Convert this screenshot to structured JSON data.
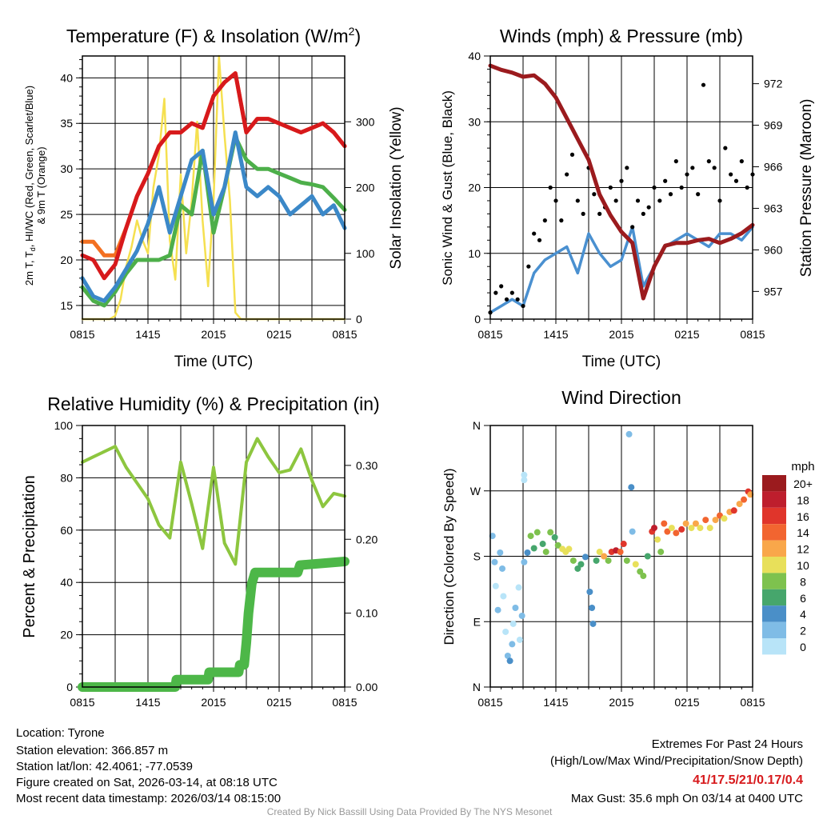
{
  "chart_data": [
    {
      "type": "line",
      "title_main": "Temperature (F) & Insolation (W/m",
      "title_sup": "2",
      "title_end": ")",
      "xlabel": "Time (UTC)",
      "ylabel_line1_a": "2m T, T",
      "ylabel_line1_sub": "d",
      "ylabel_line1_b": ", HI/WC (Red, Green, Scarlet/Blue)",
      "ylabel_line2": "& 9m T (Orange)",
      "ylabel_right": "Solar Insolation (Yellow)",
      "x_tick_labels": [
        "0815",
        "1415",
        "2015",
        "0215",
        "0815"
      ],
      "y_ticks": [
        15,
        20,
        25,
        30,
        35,
        40
      ],
      "ylim": [
        13.5,
        42.4
      ],
      "y_right_ticks": [
        0,
        100,
        200,
        300
      ],
      "y_right_lim": [
        0,
        400
      ],
      "x_hours": [
        0,
        1,
        2,
        3,
        4,
        5,
        6,
        7,
        8,
        9,
        10,
        11,
        12,
        13,
        14,
        15,
        16,
        17,
        18,
        19,
        20,
        21,
        22,
        23,
        24
      ],
      "series": [
        {
          "name": "9m T",
          "color": "#F37021",
          "values": [
            22,
            22,
            20.5,
            20.5,
            23.5,
            27,
            29.5,
            32.5,
            34,
            34,
            35,
            34.5,
            38,
            39.5,
            40.5,
            34,
            35.5,
            35.5,
            35,
            34.5,
            34,
            34.5,
            35,
            34,
            32.5
          ]
        },
        {
          "name": "2m T",
          "color": "#D7191C",
          "values": [
            20.5,
            20,
            18,
            19.5,
            23.5,
            27,
            29.5,
            32.5,
            34,
            34,
            35,
            34.5,
            38,
            39.5,
            40.5,
            34,
            35.5,
            35.5,
            35,
            34.5,
            34,
            34.5,
            35,
            34,
            32.5
          ]
        },
        {
          "name": "Td",
          "color": "#4DAF4A",
          "values": [
            17,
            15.5,
            15,
            16.5,
            18.5,
            20,
            20,
            20,
            20.5,
            26,
            25,
            32,
            23,
            28,
            33.5,
            31,
            30,
            30,
            29.5,
            29,
            28.5,
            28.3,
            28,
            26.8,
            25.5
          ]
        },
        {
          "name": "HI/WC",
          "color": "#3B88C8",
          "values": [
            18,
            16,
            15.5,
            17,
            19,
            21,
            24,
            28,
            23,
            27,
            31,
            32,
            25,
            28,
            34,
            28,
            27,
            28,
            27,
            25,
            26,
            27,
            25,
            26,
            23.5
          ]
        }
      ],
      "solar": {
        "name": "Solar Insolation",
        "color": "#F5E050",
        "step_hours": 0.5,
        "values": [
          0,
          0,
          0,
          0,
          0,
          0,
          5,
          30,
          80,
          110,
          150,
          120,
          100,
          200,
          250,
          335,
          120,
          60,
          220,
          100,
          180,
          300,
          150,
          50,
          180,
          400,
          280,
          180,
          10,
          0,
          0,
          0,
          0,
          0,
          0,
          0,
          0,
          0,
          0,
          0,
          0,
          0,
          0,
          0,
          0,
          0,
          0,
          0,
          0
        ]
      }
    },
    {
      "type": "line",
      "title": "Winds (mph) & Pressure (mb)",
      "xlabel": "Time (UTC)",
      "ylabel": "Sonic Wind & Gust (Blue, Black)",
      "ylabel_right": "Station Pressure (Maroon)",
      "x_tick_labels": [
        "0815",
        "1415",
        "2015",
        "0215",
        "0815"
      ],
      "y_ticks": [
        0,
        10,
        20,
        30,
        40
      ],
      "ylim": [
        0,
        40
      ],
      "y_right_ticks": [
        957,
        960,
        963,
        966,
        969,
        972
      ],
      "y_right_lim": [
        955,
        974
      ],
      "x_hours": [
        0,
        1,
        2,
        3,
        4,
        5,
        6,
        7,
        8,
        9,
        10,
        11,
        12,
        13,
        14,
        15,
        16,
        17,
        18,
        19,
        20,
        21,
        22,
        23,
        24
      ],
      "wind": {
        "name": "Sonic Wind",
        "color": "#4A90D0",
        "values": [
          1,
          2,
          3,
          2,
          7,
          9,
          10,
          11,
          7,
          13,
          10,
          8,
          9,
          14,
          5,
          8,
          11,
          12,
          13,
          12,
          11,
          13,
          13,
          12,
          14
        ]
      },
      "pressure": {
        "name": "Station Pressure",
        "color": "#9B1B1E",
        "values": [
          973.3,
          973,
          972.8,
          972.5,
          972.6,
          972,
          971,
          969.5,
          968,
          966.5,
          964,
          962.5,
          961.3,
          960.5,
          956.5,
          958.8,
          960.3,
          960.5,
          960.5,
          960.7,
          960.8,
          960.5,
          960.8,
          961.2,
          961.8
        ]
      },
      "gust": {
        "name": "Gust",
        "color": "#000000",
        "step_hours": 0.5,
        "values": [
          1,
          4,
          5,
          3,
          4,
          3,
          2,
          8,
          13,
          12,
          15,
          20,
          18,
          15,
          22,
          25,
          18,
          16,
          23,
          19,
          16,
          17,
          20,
          18,
          21,
          23,
          14,
          18,
          16,
          17,
          20,
          18,
          21,
          19,
          24,
          20,
          22,
          23,
          19,
          35.6,
          24,
          23,
          18,
          26,
          22,
          21,
          24,
          20,
          22
        ]
      }
    },
    {
      "type": "line",
      "title": "Relative Humidity (%) & Precipitation (in)",
      "ylabel": "Percent & Precipitation",
      "x_tick_labels": [
        "0815",
        "1415",
        "2015",
        "0215",
        "0815"
      ],
      "y_ticks": [
        0,
        20,
        40,
        60,
        80,
        100
      ],
      "ylim": [
        0,
        100
      ],
      "y_right_ticks": [
        "0.00",
        "0.10",
        "0.20",
        "0.30"
      ],
      "y_right_lim": [
        0,
        0.354
      ],
      "x_hours": [
        0,
        1,
        2,
        3,
        4,
        5,
        6,
        7,
        8,
        9,
        10,
        11,
        12,
        13,
        14,
        15,
        16,
        17,
        18,
        19,
        20,
        21,
        22,
        23,
        24
      ],
      "humidity": {
        "name": "Relative Humidity",
        "color": "#8DC63F",
        "values": [
          86,
          88,
          90,
          92,
          84,
          78,
          72,
          62,
          57,
          86,
          70,
          53,
          84,
          55,
          47,
          86,
          95,
          88,
          82,
          83,
          91,
          79,
          69,
          74,
          73
        ]
      },
      "precip": {
        "name": "Precipitation",
        "color": "#4DB748",
        "points": [
          [
            0,
            0
          ],
          [
            8.5,
            0
          ],
          [
            8.6,
            0.01
          ],
          [
            11.5,
            0.01
          ],
          [
            11.6,
            0.02
          ],
          [
            14.3,
            0.02
          ],
          [
            14.4,
            0.03
          ],
          [
            14.8,
            0.03
          ],
          [
            15,
            0.06
          ],
          [
            15.2,
            0.1
          ],
          [
            15.5,
            0.14
          ],
          [
            15.8,
            0.155
          ],
          [
            19.7,
            0.155
          ],
          [
            19.9,
            0.165
          ],
          [
            24,
            0.17
          ]
        ]
      }
    },
    {
      "type": "scatter",
      "title": "Wind Direction",
      "ylabel": "Direction (Colored By Speed)",
      "x_tick_labels": [
        "0815",
        "1415",
        "2015",
        "0215",
        "0815"
      ],
      "y_tick_labels": [
        "N",
        "E",
        "S",
        "W",
        "N"
      ],
      "ylim": [
        0,
        360
      ],
      "colorbar_title": "mph",
      "colorbar_labels": [
        "20+",
        "18",
        "16",
        "14",
        "12",
        "10",
        "8",
        "6",
        "4",
        "2",
        "0"
      ],
      "colorbar_colors": [
        "#9B1B1E",
        "#BE1E2D",
        "#E0352B",
        "#F26530",
        "#F9A74A",
        "#E8E05A",
        "#7EC24E",
        "#46A66C",
        "#4A8FC8",
        "#7FBCE6",
        "#B8E4F8"
      ],
      "points_hour_dir_speed": [
        [
          0.2,
          208,
          2
        ],
        [
          0.4,
          172,
          2
        ],
        [
          0.5,
          139,
          1
        ],
        [
          0.7,
          106,
          2
        ],
        [
          0.9,
          185,
          3
        ],
        [
          1.1,
          163,
          2
        ],
        [
          1.2,
          125,
          1
        ],
        [
          1.4,
          76,
          1
        ],
        [
          1.6,
          43,
          3
        ],
        [
          1.8,
          36,
          4
        ],
        [
          2.0,
          59,
          2
        ],
        [
          2.1,
          87,
          1
        ],
        [
          2.3,
          109,
          2
        ],
        [
          2.6,
          137,
          1
        ],
        [
          2.7,
          65,
          1
        ],
        [
          2.9,
          98,
          2
        ],
        [
          3.1,
          285,
          1
        ],
        [
          3.1,
          292,
          0
        ],
        [
          3.1,
          172,
          3
        ],
        [
          3.4,
          185,
          5
        ],
        [
          3.7,
          208,
          8
        ],
        [
          4.0,
          191,
          7
        ],
        [
          4.3,
          213,
          9
        ],
        [
          4.8,
          197,
          6
        ],
        [
          5.1,
          186,
          8
        ],
        [
          5.5,
          213,
          9
        ],
        [
          5.9,
          206,
          7
        ],
        [
          6.2,
          195,
          9
        ],
        [
          6.6,
          190,
          10
        ],
        [
          6.9,
          186,
          11
        ],
        [
          7.2,
          190,
          10
        ],
        [
          7.6,
          174,
          8
        ],
        [
          8.0,
          163,
          6
        ],
        [
          8.3,
          169,
          7
        ],
        [
          8.7,
          179,
          5
        ],
        [
          9.1,
          131,
          4
        ],
        [
          9.3,
          109,
          4
        ],
        [
          9.4,
          87,
          4
        ],
        [
          9.7,
          174,
          6
        ],
        [
          10.0,
          186,
          11
        ],
        [
          10.4,
          180,
          12
        ],
        [
          10.8,
          174,
          9
        ],
        [
          11.1,
          186,
          16
        ],
        [
          11.5,
          188,
          18
        ],
        [
          11.9,
          186,
          14
        ],
        [
          12.2,
          197,
          17
        ],
        [
          12.5,
          174,
          9
        ],
        [
          12.7,
          348,
          3
        ],
        [
          12.9,
          275,
          4
        ],
        [
          13.0,
          214,
          2
        ],
        [
          13.3,
          169,
          10
        ],
        [
          13.7,
          159,
          9
        ],
        [
          14.0,
          153,
          8
        ],
        [
          14.4,
          180,
          6
        ],
        [
          14.8,
          214,
          17
        ],
        [
          15.0,
          219,
          18
        ],
        [
          15.3,
          203,
          10
        ],
        [
          15.6,
          186,
          8
        ],
        [
          15.9,
          225,
          14
        ],
        [
          16.2,
          214,
          15
        ],
        [
          16.6,
          219,
          10
        ],
        [
          17.0,
          212,
          14
        ],
        [
          17.5,
          217,
          16
        ],
        [
          17.9,
          225,
          12
        ],
        [
          18.4,
          219,
          11
        ],
        [
          18.8,
          225,
          13
        ],
        [
          19.2,
          219,
          10
        ],
        [
          19.7,
          230,
          15
        ],
        [
          20.1,
          219,
          11
        ],
        [
          20.6,
          230,
          12
        ],
        [
          21.0,
          236,
          14
        ],
        [
          21.4,
          232,
          11
        ],
        [
          21.9,
          241,
          12
        ],
        [
          22.3,
          243,
          16
        ],
        [
          22.8,
          252,
          13
        ],
        [
          23.2,
          258,
          14
        ],
        [
          23.6,
          269,
          16
        ],
        [
          23.8,
          265,
          12
        ]
      ]
    }
  ],
  "footer": {
    "location": "Location: Tyrone",
    "elevation": "Station elevation: 366.857 m",
    "latlon": "Station lat/lon: 42.4061; -77.0539",
    "created": "Figure created on Sat, 2026-03-14, at 08:18 UTC",
    "recent": "Most recent data timestamp: 2026/03/14 08:15:00",
    "extremes_title": "Extremes For Past 24 Hours",
    "extremes_sub": "(High/Low/Max Wind/Precipitation/Snow Depth)",
    "extremes_values": "41/17.5/21/0.17/0.4",
    "extremes_color": "#D7191C",
    "max_gust": "Max Gust: 35.6 mph On 03/14 at 0400 UTC",
    "credit": "Created By Nick Bassill Using Data Provided By The NYS Mesonet"
  }
}
